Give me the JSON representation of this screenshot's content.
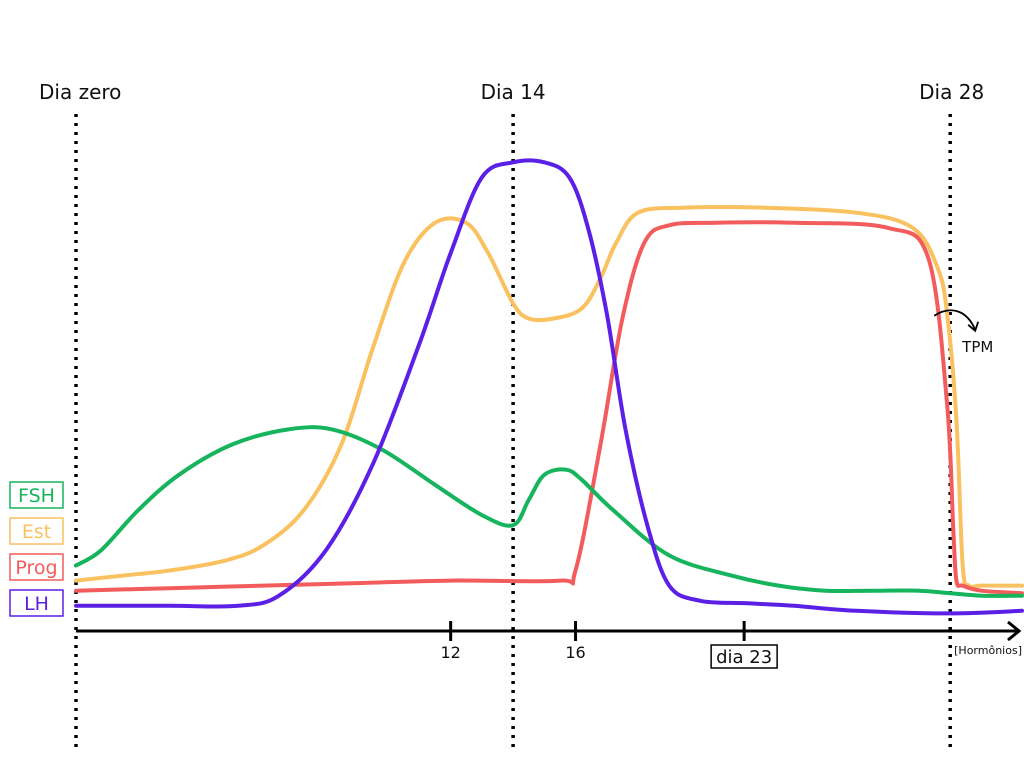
{
  "chart_data": {
    "type": "line",
    "title": "",
    "xlabel": "[Hormônios]",
    "ylabel": "",
    "xlim": [
      0,
      30.3
    ],
    "ylim": [
      0,
      100
    ],
    "grid": false,
    "legend_position": "left",
    "day_markers": [
      {
        "label": "Dia zero",
        "x": 0
      },
      {
        "label": "Dia 14",
        "x": 14
      },
      {
        "label": "Dia 28",
        "x": 28
      }
    ],
    "ticks": [
      {
        "label": "12",
        "x": 12,
        "boxed": false
      },
      {
        "label": "16",
        "x": 16,
        "boxed": false
      },
      {
        "label": "dia 23",
        "x": 21.4,
        "boxed": true
      }
    ],
    "annotations": [
      {
        "label": "TPM",
        "x": 28.8,
        "y": 56
      }
    ],
    "series": [
      {
        "name": "FSH",
        "color": "#16b45c",
        "x": [
          0,
          0.8,
          2,
          3.3,
          5,
          6.8,
          8.2,
          9.8,
          11.5,
          13,
          14,
          14.5,
          15,
          15.7,
          16.2,
          17.2,
          19,
          21,
          22.5,
          24,
          25.5,
          27,
          28,
          29,
          30.3
        ],
        "y": [
          13,
          16,
          24,
          31,
          37,
          40,
          40,
          36,
          29,
          23,
          21,
          26,
          31,
          32,
          30,
          24,
          15,
          11,
          9,
          8,
          8,
          8,
          7.5,
          7,
          7
        ]
      },
      {
        "name": "Est",
        "color": "#f9c15f",
        "x": [
          0,
          1.5,
          3,
          4.8,
          6,
          7.3,
          8.5,
          9.5,
          10.5,
          11.5,
          12.5,
          13.2,
          14,
          14.5,
          15.3,
          16.2,
          16.8,
          17.3,
          18,
          19.5,
          22,
          25,
          26.8,
          27.6,
          27.9,
          28.2,
          28.4,
          28.6,
          29,
          30.3
        ],
        "y": [
          10,
          11,
          12,
          14,
          17,
          24,
          37,
          56,
          73,
          81,
          81,
          75,
          65,
          62,
          62,
          64,
          70,
          77,
          83,
          84,
          84,
          83,
          80,
          72,
          63,
          42,
          13,
          9,
          9,
          9
        ]
      },
      {
        "name": "Prog",
        "color": "#f25c5c",
        "x": [
          0,
          3,
          6,
          9,
          12,
          15.5,
          16,
          16.8,
          17.5,
          18.2,
          19,
          20.5,
          23,
          26,
          27.3,
          27.9,
          28.1,
          28.2,
          28.4,
          29,
          30.3
        ],
        "y": [
          8,
          8.5,
          9,
          9.5,
          10,
          10,
          12,
          37,
          62,
          77,
          80.5,
          81,
          81,
          80,
          74,
          45,
          20,
          10,
          9,
          8,
          7.5
        ]
      },
      {
        "name": "LH",
        "color": "#5b1fe6",
        "x": [
          0,
          3,
          5.2,
          6.5,
          8,
          9.5,
          11,
          12,
          13,
          14,
          15,
          15.8,
          16.4,
          17,
          17.6,
          18.3,
          19,
          20,
          21.5,
          23,
          25,
          28,
          30.3
        ],
        "y": [
          5,
          5,
          5,
          7,
          16,
          33,
          57,
          75,
          90,
          93,
          93,
          90,
          80,
          63,
          40,
          21,
          9,
          6,
          5.5,
          5,
          4,
          3.5,
          4
        ]
      }
    ]
  }
}
